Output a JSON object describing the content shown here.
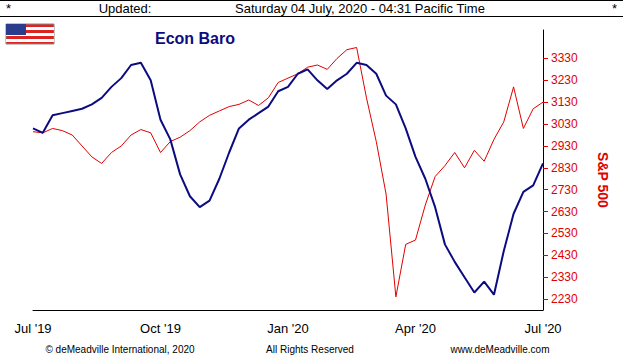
{
  "chart_data": {
    "type": "line",
    "categories": [
      "Jul '19",
      null,
      null,
      null,
      null,
      null,
      null,
      null,
      null,
      null,
      null,
      null,
      null,
      "Oct '19",
      null,
      null,
      null,
      null,
      null,
      null,
      null,
      null,
      null,
      null,
      null,
      null,
      "Jan '20",
      null,
      null,
      null,
      null,
      null,
      null,
      null,
      null,
      null,
      null,
      null,
      null,
      "Apr '20",
      null,
      null,
      null,
      null,
      null,
      null,
      null,
      null,
      null,
      null,
      null,
      null,
      "Jul '20"
    ],
    "series": [
      {
        "name": "Econ Baro",
        "color": "#0c0c80",
        "values": [
          3010,
          2990,
          3070,
          3080,
          3090,
          3100,
          3120,
          3150,
          3200,
          3240,
          3300,
          3310,
          3230,
          3050,
          2960,
          2800,
          2700,
          2650,
          2680,
          2780,
          2900,
          3010,
          3050,
          3080,
          3110,
          3180,
          3200,
          3260,
          3280,
          3230,
          3190,
          3230,
          3260,
          3310,
          3300,
          3260,
          3160,
          3120,
          3010,
          2880,
          2780,
          2650,
          2480,
          2400,
          2330,
          2260,
          2310,
          2250,
          2450,
          2620,
          2720,
          2750,
          2850
        ]
      },
      {
        "name": "S&P 500",
        "color": "#e00000",
        "values": [
          2995,
          2990,
          3010,
          3000,
          2980,
          2930,
          2880,
          2850,
          2900,
          2930,
          2980,
          3005,
          2990,
          2900,
          2950,
          2970,
          3000,
          3040,
          3070,
          3090,
          3110,
          3120,
          3140,
          3115,
          3150,
          3220,
          3240,
          3260,
          3290,
          3300,
          3280,
          3330,
          3370,
          3380,
          3150,
          2950,
          2710,
          2240,
          2480,
          2500,
          2660,
          2790,
          2840,
          2900,
          2830,
          2910,
          2860,
          2960,
          3040,
          3200,
          3010,
          3100,
          3130
        ]
      }
    ],
    "ylim": [
      2180,
      3460
    ],
    "yticks": [
      2230,
      2330,
      2430,
      2530,
      2630,
      2730,
      2830,
      2930,
      3030,
      3130,
      3230,
      3330
    ],
    "grid": false,
    "tick_labels": "y",
    "annotations": [
      "*",
      "Updated:",
      "Saturday 04 July, 2020 - 04:31 Pacific Time",
      "*",
      "© deMeadville International, 2020",
      "All Rights Reserved",
      "www.deMeadville.com"
    ]
  }
}
